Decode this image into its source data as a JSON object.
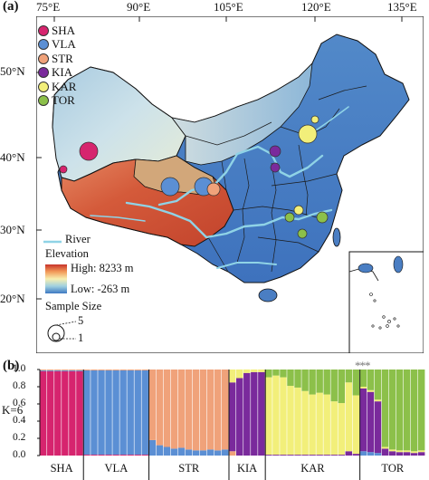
{
  "panel_a": {
    "label": "(a)",
    "lon_ticks": [
      "75°E",
      "90°E",
      "105°E",
      "120°E",
      "135°E"
    ],
    "lat_ticks": [
      "50°N",
      "40°N",
      "30°N",
      "20°N"
    ],
    "populations": [
      {
        "name": "SHA",
        "color": "#d6246e"
      },
      {
        "name": "VLA",
        "color": "#5b8fd4"
      },
      {
        "name": "STR",
        "color": "#f0a27a"
      },
      {
        "name": "KIA",
        "color": "#7a2a9c"
      },
      {
        "name": "KAR",
        "color": "#f2ef7a"
      },
      {
        "name": "TOR",
        "color": "#8cc04a"
      }
    ],
    "river_label": "River",
    "elevation_title": "Elevation",
    "elevation_high": "High: 8233 m",
    "elevation_low": "Low: -263 m",
    "sample_size_title": "Sample Size",
    "sample_size_values": [
      "5",
      "1"
    ],
    "river_color": "#8fd3e6",
    "ramp_colors": [
      "#c7322a",
      "#f29a59",
      "#f7efb0",
      "#9fd0e0",
      "#3e78c2"
    ]
  },
  "panel_b": {
    "label": "(b)",
    "ylabel": "K=6",
    "annotation": "***"
  },
  "chart_data": {
    "type": "bar",
    "stacked": true,
    "ylabel": "K=6",
    "ylim": [
      0,
      1.0
    ],
    "y_ticks": [
      "1.0",
      "0.8",
      "0.6",
      "0.4",
      "0.2",
      "0.0"
    ],
    "groups": [
      "SHA",
      "VLA",
      "STR",
      "KIA",
      "KAR",
      "TOR"
    ],
    "group_sizes": [
      6,
      9,
      11,
      5,
      13,
      9
    ],
    "component_colors": [
      "#d6246e",
      "#5b8fd4",
      "#f0a27a",
      "#7a2a9c",
      "#f2ef7a",
      "#8cc04a"
    ],
    "components": [
      "SHA",
      "VLA",
      "STR",
      "KIA",
      "KAR",
      "TOR"
    ],
    "individuals": [
      [
        0.98,
        0.01,
        0.01,
        0,
        0,
        0
      ],
      [
        0.98,
        0.01,
        0.01,
        0,
        0,
        0
      ],
      [
        0.98,
        0.01,
        0.01,
        0,
        0,
        0
      ],
      [
        0.98,
        0.01,
        0.01,
        0,
        0,
        0
      ],
      [
        0.98,
        0.01,
        0.01,
        0,
        0,
        0
      ],
      [
        0.98,
        0.01,
        0.01,
        0,
        0,
        0
      ],
      [
        0.01,
        0.98,
        0.01,
        0,
        0,
        0
      ],
      [
        0.01,
        0.98,
        0.01,
        0,
        0,
        0
      ],
      [
        0.01,
        0.98,
        0.01,
        0,
        0,
        0
      ],
      [
        0.01,
        0.98,
        0.01,
        0,
        0,
        0
      ],
      [
        0.01,
        0.98,
        0.01,
        0,
        0,
        0
      ],
      [
        0.01,
        0.98,
        0.01,
        0,
        0,
        0
      ],
      [
        0.01,
        0.98,
        0.01,
        0,
        0,
        0
      ],
      [
        0.01,
        0.98,
        0.01,
        0,
        0,
        0
      ],
      [
        0.01,
        0.98,
        0.01,
        0,
        0,
        0
      ],
      [
        0,
        0.18,
        0.82,
        0,
        0,
        0
      ],
      [
        0,
        0.12,
        0.88,
        0,
        0,
        0
      ],
      [
        0,
        0.1,
        0.9,
        0,
        0,
        0
      ],
      [
        0,
        0.08,
        0.92,
        0,
        0,
        0
      ],
      [
        0,
        0.09,
        0.91,
        0,
        0,
        0
      ],
      [
        0,
        0.07,
        0.93,
        0,
        0,
        0
      ],
      [
        0,
        0.06,
        0.94,
        0,
        0,
        0
      ],
      [
        0,
        0.06,
        0.94,
        0,
        0,
        0
      ],
      [
        0,
        0.07,
        0.93,
        0,
        0,
        0
      ],
      [
        0,
        0.06,
        0.94,
        0,
        0,
        0
      ],
      [
        0,
        0.07,
        0.93,
        0,
        0,
        0
      ],
      [
        0,
        0,
        0.05,
        0.8,
        0.15,
        0
      ],
      [
        0,
        0,
        0,
        0.9,
        0.1,
        0
      ],
      [
        0,
        0,
        0,
        0.96,
        0.04,
        0
      ],
      [
        0,
        0,
        0,
        0.97,
        0.03,
        0
      ],
      [
        0,
        0,
        0,
        0.97,
        0.03,
        0
      ],
      [
        0,
        0,
        0,
        0.01,
        0.9,
        0.09
      ],
      [
        0,
        0,
        0,
        0.01,
        0.92,
        0.07
      ],
      [
        0,
        0,
        0,
        0.01,
        0.9,
        0.09
      ],
      [
        0,
        0,
        0,
        0.01,
        0.8,
        0.19
      ],
      [
        0,
        0,
        0,
        0.01,
        0.78,
        0.21
      ],
      [
        0,
        0,
        0,
        0.01,
        0.74,
        0.25
      ],
      [
        0,
        0,
        0,
        0.01,
        0.7,
        0.29
      ],
      [
        0,
        0,
        0,
        0.01,
        0.72,
        0.27
      ],
      [
        0,
        0,
        0,
        0.01,
        0.7,
        0.29
      ],
      [
        0,
        0,
        0,
        0.01,
        0.62,
        0.37
      ],
      [
        0,
        0,
        0,
        0.01,
        0.6,
        0.39
      ],
      [
        0,
        0,
        0,
        0.05,
        0.8,
        0.15
      ],
      [
        0,
        0,
        0,
        0.02,
        0.68,
        0.3
      ],
      [
        0,
        0.05,
        0,
        0.73,
        0.02,
        0.2
      ],
      [
        0,
        0.04,
        0,
        0.7,
        0.02,
        0.24
      ],
      [
        0,
        0.03,
        0,
        0.6,
        0.02,
        0.35
      ],
      [
        0,
        0,
        0,
        0.08,
        0.02,
        0.9
      ],
      [
        0,
        0,
        0,
        0.05,
        0.02,
        0.93
      ],
      [
        0,
        0,
        0,
        0.04,
        0.02,
        0.94
      ],
      [
        0,
        0,
        0,
        0.04,
        0.02,
        0.94
      ],
      [
        0,
        0,
        0,
        0.03,
        0.02,
        0.95
      ],
      [
        0,
        0,
        0,
        0.04,
        0.02,
        0.94
      ]
    ]
  }
}
